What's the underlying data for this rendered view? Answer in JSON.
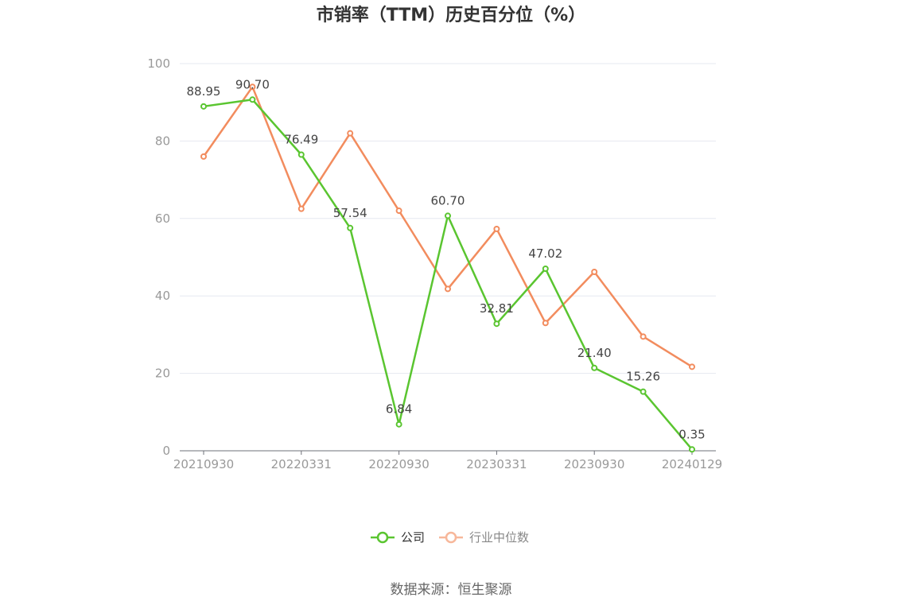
{
  "chart_data": {
    "type": "line",
    "title": "市销率（TTM）历史百分位（%）",
    "xlabel": "",
    "ylabel": "",
    "ylim": [
      0,
      100
    ],
    "y_ticks": [
      "0",
      "20",
      "40",
      "60",
      "80",
      "100"
    ],
    "x_tick_labels": [
      "20210930",
      "20220331",
      "20220930",
      "20230331",
      "20230930",
      "20240129"
    ],
    "grid": true,
    "legend_position": "bottom",
    "series": [
      {
        "name": "公司",
        "color": "#5ac530",
        "values": [
          88.95,
          90.7,
          76.49,
          57.54,
          6.84,
          60.7,
          32.81,
          47.02,
          21.4,
          15.26,
          0.35
        ],
        "labels": [
          "88.95",
          "90.70",
          "76.49",
          "57.54",
          "6.84",
          "60.70",
          "32.81",
          "47.02",
          "21.40",
          "15.26",
          "0.35"
        ]
      },
      {
        "name": "行业中位数",
        "color": "#f28c5e",
        "values": [
          76.0,
          94.0,
          62.5,
          82.0,
          62.0,
          41.8,
          57.3,
          33.0,
          46.2,
          29.5,
          21.7
        ]
      }
    ]
  },
  "source": "数据来源：恒生聚源"
}
